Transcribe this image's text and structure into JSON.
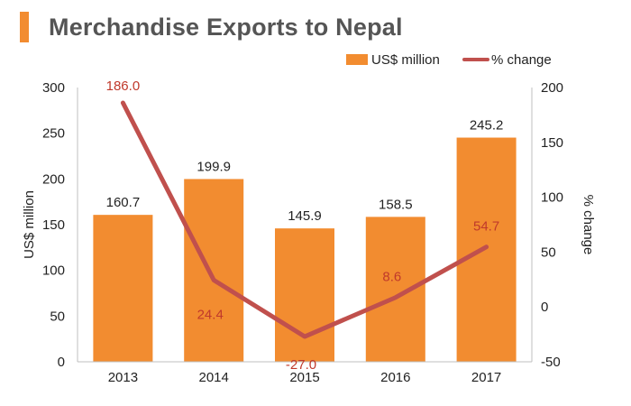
{
  "title": "Merchandise Exports to Nepal",
  "chart_data": {
    "type": "bar+line",
    "categories": [
      "2013",
      "2014",
      "2015",
      "2016",
      "2017"
    ],
    "series": [
      {
        "name": "US$ million",
        "type": "bar",
        "axis": "left",
        "values": [
          160.7,
          199.9,
          145.9,
          158.5,
          245.2
        ],
        "labels": [
          "160.7",
          "199.9",
          "145.9",
          "158.5",
          "245.2"
        ],
        "color": "#f28c30"
      },
      {
        "name": "% change",
        "type": "line",
        "axis": "right",
        "values": [
          186.0,
          24.4,
          -27.0,
          8.6,
          54.7
        ],
        "labels": [
          "186.0",
          "24.4",
          "-27.0",
          "8.6",
          "54.7"
        ],
        "color": "#c0504d",
        "label_color": "#d0342c"
      }
    ],
    "y_left": {
      "label": "US$ million",
      "range": [
        0,
        300
      ],
      "ticks": [
        0,
        50,
        100,
        150,
        200,
        250,
        300
      ]
    },
    "y_right": {
      "label": "% change",
      "range": [
        -50,
        200
      ],
      "ticks": [
        -50,
        0,
        50,
        100,
        150,
        200
      ]
    },
    "legend": [
      {
        "name": "US$ million",
        "kind": "box",
        "color": "#f28c30"
      },
      {
        "name": "% change",
        "kind": "line",
        "color": "#c0504d"
      }
    ],
    "legend_position": "top-right",
    "grid": false
  }
}
